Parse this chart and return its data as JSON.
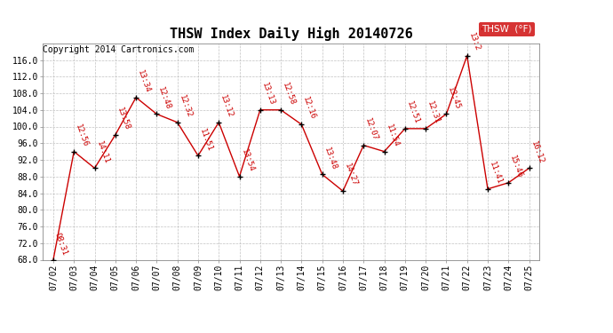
{
  "title": "THSW Index Daily High 20140726",
  "copyright": "Copyright 2014 Cartronics.com",
  "legend_label": "THSW  (°F)",
  "dates": [
    "07/02",
    "07/03",
    "07/04",
    "07/05",
    "07/06",
    "07/07",
    "07/08",
    "07/09",
    "07/10",
    "07/11",
    "07/12",
    "07/13",
    "07/14",
    "07/15",
    "07/16",
    "07/17",
    "07/18",
    "07/19",
    "07/20",
    "07/21",
    "07/22",
    "07/23",
    "07/24",
    "07/25"
  ],
  "values": [
    68.0,
    94.0,
    90.0,
    98.0,
    107.0,
    103.0,
    101.0,
    93.0,
    101.0,
    88.0,
    104.0,
    104.0,
    100.5,
    88.5,
    84.5,
    95.5,
    94.0,
    99.5,
    99.5,
    103.0,
    117.0,
    85.0,
    86.5,
    90.0
  ],
  "labels": [
    "08:31",
    "12:56",
    "14:11",
    "13:58",
    "13:34",
    "12:48",
    "12:32",
    "11:51",
    "13:12",
    "13:54",
    "13:13",
    "12:58",
    "12:16",
    "13:48",
    "14:27",
    "12:07",
    "11:54",
    "12:51",
    "12:31",
    "13:45",
    "13:2",
    "11:41",
    "15:46",
    "16:12"
  ],
  "ylim": [
    68.0,
    120.0
  ],
  "yticks": [
    68.0,
    72.0,
    76.0,
    80.0,
    84.0,
    88.0,
    92.0,
    96.0,
    100.0,
    104.0,
    108.0,
    112.0,
    116.0
  ],
  "line_color": "#cc0000",
  "marker_color": "#000000",
  "label_color": "#cc0000",
  "bg_color": "#ffffff",
  "grid_color": "#bbbbbb",
  "title_fontsize": 11,
  "label_fontsize": 6.5,
  "tick_fontsize": 7,
  "copyright_fontsize": 7
}
